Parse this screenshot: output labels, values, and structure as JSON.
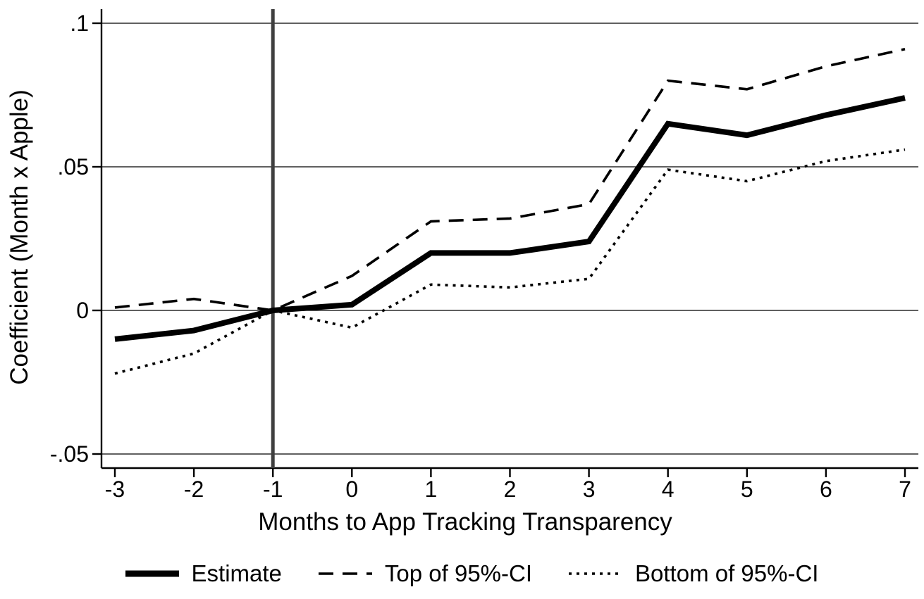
{
  "chart_data": {
    "type": "line",
    "title": "",
    "xlabel": "Months to App Tracking Transparency",
    "ylabel": "Coefficient (Month x Apple)",
    "x": [
      -3,
      -2,
      -1,
      0,
      1,
      2,
      3,
      4,
      5,
      6,
      7
    ],
    "x_tick_labels": [
      "-3",
      "-2",
      "-1",
      "0",
      "1",
      "2",
      "3",
      "4",
      "5",
      "6",
      "7"
    ],
    "y_ticks": [
      {
        "value": 0.1,
        "label": ".1"
      },
      {
        "value": 0.05,
        "label": ".05"
      },
      {
        "value": 0,
        "label": "0"
      },
      {
        "value": -0.05,
        "label": "-.05"
      }
    ],
    "xlim": [
      -3.17,
      7.17
    ],
    "ylim": [
      -0.055,
      0.105
    ],
    "grid": true,
    "legend_position": "bottom",
    "reference_line_x": -1,
    "series": [
      {
        "name": "Estimate",
        "line_style": "solid",
        "color": "#000000",
        "values": [
          -0.01,
          -0.007,
          0,
          0.002,
          0.02,
          0.02,
          0.024,
          0.065,
          0.061,
          0.068,
          0.074
        ]
      },
      {
        "name": "Top of 95%-CI",
        "line_style": "dashed",
        "color": "#000000",
        "values": [
          0.001,
          0.004,
          0,
          0.012,
          0.031,
          0.032,
          0.037,
          0.08,
          0.077,
          0.085,
          0.091
        ]
      },
      {
        "name": "Bottom of 95%-CI",
        "line_style": "dotted",
        "color": "#000000",
        "values": [
          -0.022,
          -0.015,
          0,
          -0.006,
          0.009,
          0.008,
          0.011,
          0.049,
          0.045,
          0.052,
          0.056
        ]
      }
    ]
  },
  "colors": {
    "background": "#ffffff",
    "axis": "#000000",
    "gridline": "#000000",
    "reference_line": "#3f3f3f"
  }
}
